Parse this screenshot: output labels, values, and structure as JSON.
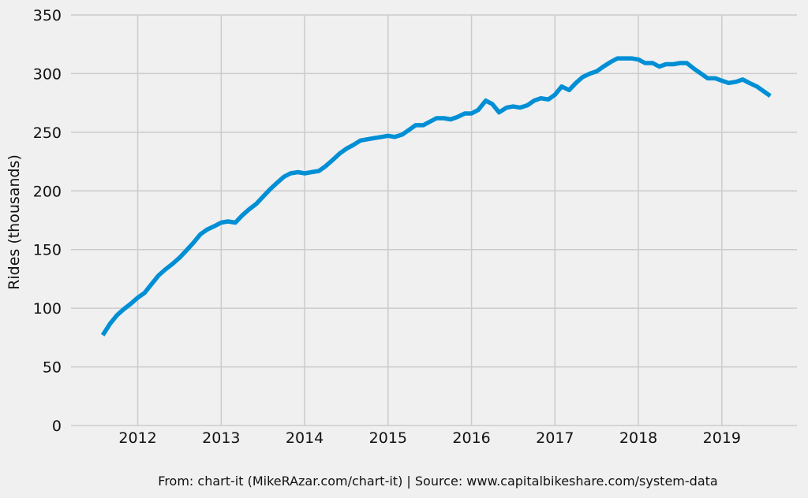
{
  "chart_data": {
    "type": "line",
    "title": "",
    "xlabel": "",
    "ylabel": "Rides (thousands)",
    "source_note": "From: chart-it (MikeRAzar.com/chart-it) | Source: www.capitalbikeshare.com/system-data",
    "ylim": [
      0,
      350
    ],
    "xlim": [
      2011.2,
      2019.9
    ],
    "y_ticks": [
      0,
      50,
      100,
      150,
      200,
      250,
      300,
      350
    ],
    "x_ticks": [
      2012,
      2013,
      2014,
      2015,
      2016,
      2017,
      2018,
      2019
    ],
    "x_tick_labels": [
      "2012",
      "2013",
      "2014",
      "2015",
      "2016",
      "2017",
      "2018",
      "2019"
    ],
    "grid": true,
    "legend": "none",
    "line_color": "#008fd5",
    "series": [
      {
        "x": [
          2011.58,
          2011.67,
          2011.75,
          2011.83,
          2011.92,
          2012.0,
          2012.08,
          2012.17,
          2012.25,
          2012.33,
          2012.42,
          2012.5,
          2012.58,
          2012.67,
          2012.75,
          2012.83,
          2012.92,
          2013.0,
          2013.08,
          2013.17,
          2013.25,
          2013.33,
          2013.42,
          2013.5,
          2013.58,
          2013.67,
          2013.75,
          2013.83,
          2013.92,
          2014.0,
          2014.08,
          2014.17,
          2014.25,
          2014.33,
          2014.42,
          2014.5,
          2014.58,
          2014.67,
          2014.75,
          2014.83,
          2014.92,
          2015.0,
          2015.08,
          2015.17,
          2015.25,
          2015.33,
          2015.42,
          2015.5,
          2015.58,
          2015.67,
          2015.75,
          2015.83,
          2015.92,
          2016.0,
          2016.08,
          2016.17,
          2016.25,
          2016.33,
          2016.42,
          2016.5,
          2016.58,
          2016.67,
          2016.75,
          2016.83,
          2016.92,
          2017.0,
          2017.08,
          2017.17,
          2017.25,
          2017.33,
          2017.42,
          2017.5,
          2017.58,
          2017.67,
          2017.75,
          2017.83,
          2017.92,
          2018.0,
          2018.08,
          2018.17,
          2018.25,
          2018.33,
          2018.42,
          2018.5,
          2018.58,
          2018.67,
          2018.75,
          2018.83,
          2018.92,
          2019.0,
          2019.08,
          2019.17,
          2019.25,
          2019.33,
          2019.42,
          2019.5,
          2019.58
        ],
        "values": [
          77,
          87,
          94,
          99,
          104,
          109,
          113,
          121,
          128,
          133,
          138,
          143,
          149,
          156,
          163,
          167,
          170,
          173,
          174,
          173,
          179,
          184,
          189,
          195,
          201,
          207,
          212,
          215,
          216,
          215,
          216,
          217,
          221,
          226,
          232,
          236,
          239,
          243,
          244,
          245,
          246,
          247,
          246,
          248,
          252,
          256,
          256,
          259,
          262,
          262,
          261,
          263,
          266,
          266,
          269,
          277,
          274,
          267,
          271,
          272,
          271,
          273,
          277,
          279,
          278,
          282,
          289,
          286,
          292,
          297,
          300,
          302,
          306,
          310,
          313,
          313,
          313,
          312,
          309,
          309,
          306,
          308,
          308,
          309,
          309,
          304,
          300,
          296,
          296,
          294,
          292,
          293,
          295,
          292,
          289,
          285,
          281
        ]
      }
    ]
  }
}
